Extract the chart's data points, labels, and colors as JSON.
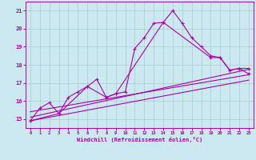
{
  "title": "",
  "xlabel": "Windchill (Refroidissement éolien,°C)",
  "bg_color": "#cce8f0",
  "grid_color": "#aacccc",
  "line_color": "#aa00aa",
  "xlim": [
    -0.5,
    23.5
  ],
  "ylim": [
    14.5,
    21.5
  ],
  "xticks": [
    0,
    1,
    2,
    3,
    4,
    5,
    6,
    7,
    8,
    9,
    10,
    11,
    12,
    13,
    14,
    15,
    16,
    17,
    18,
    19,
    20,
    21,
    22,
    23
  ],
  "yticks": [
    15,
    16,
    17,
    18,
    19,
    20,
    21
  ],
  "line1_x": [
    0,
    1,
    2,
    3,
    4,
    5,
    6,
    7,
    8,
    9,
    10,
    11,
    12,
    13,
    14,
    15,
    16,
    17,
    18,
    19,
    20,
    21,
    22,
    23
  ],
  "line1_y": [
    14.9,
    15.6,
    15.9,
    15.3,
    16.2,
    16.5,
    16.8,
    17.2,
    16.2,
    16.4,
    16.5,
    18.9,
    19.5,
    20.3,
    20.35,
    21.0,
    20.3,
    19.5,
    19.0,
    18.5,
    18.4,
    17.7,
    17.8,
    17.8
  ],
  "line2_x": [
    0,
    3,
    6,
    8,
    9,
    14,
    19,
    20,
    21,
    22,
    23
  ],
  "line2_y": [
    14.9,
    15.3,
    16.8,
    16.2,
    16.4,
    20.35,
    18.4,
    18.4,
    17.7,
    17.8,
    17.5
  ],
  "line3_x": [
    0,
    23
  ],
  "line3_y": [
    15.4,
    17.45
  ],
  "line4_x": [
    0,
    23
  ],
  "line4_y": [
    14.9,
    17.15
  ],
  "line5_x": [
    0,
    23
  ],
  "line5_y": [
    15.1,
    17.75
  ]
}
